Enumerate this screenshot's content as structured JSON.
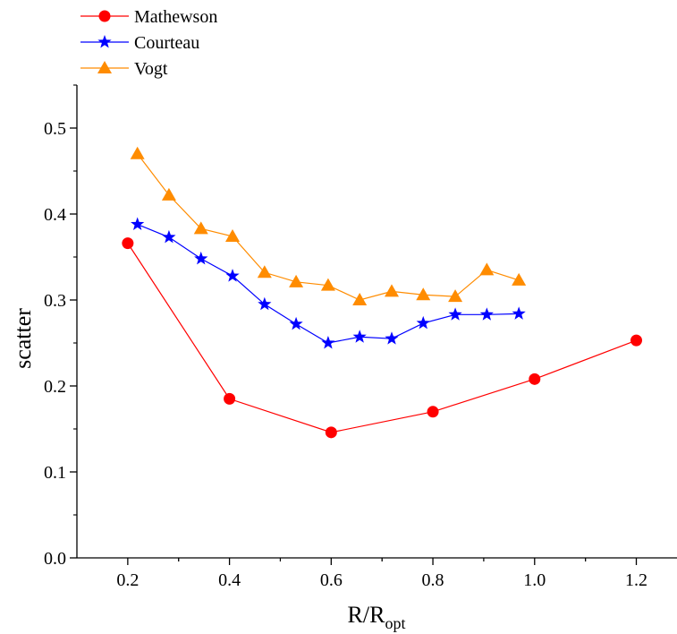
{
  "chart_data": {
    "type": "line",
    "title": "",
    "xlabel": "R/R",
    "xlabel_sub": "opt",
    "ylabel": "scatter",
    "xlim": [
      0.1,
      1.28
    ],
    "ylim": [
      0.0,
      0.55
    ],
    "xticks": [
      0.2,
      0.4,
      0.6,
      0.8,
      1.0,
      1.2
    ],
    "xtick_labels": [
      "0.2",
      "0.4",
      "0.6",
      "0.8",
      "1.0",
      "1.2"
    ],
    "yticks": [
      0.0,
      0.1,
      0.2,
      0.3,
      0.4,
      0.5
    ],
    "ytick_labels": [
      "0.0",
      "0.1",
      "0.2",
      "0.3",
      "0.4",
      "0.5"
    ],
    "grid": false,
    "legend_position": "top-left, outside above plot",
    "series": [
      {
        "name": "Mathewson",
        "color": "#ff0000",
        "marker": "circle",
        "x": [
          0.2,
          0.4,
          0.6,
          0.8,
          1.0,
          1.2
        ],
        "y": [
          0.366,
          0.185,
          0.146,
          0.17,
          0.208,
          0.253
        ]
      },
      {
        "name": "Courteau",
        "color": "#0000ff",
        "marker": "star",
        "x": [
          0.219,
          0.281,
          0.344,
          0.406,
          0.469,
          0.531,
          0.594,
          0.656,
          0.719,
          0.781,
          0.844,
          0.906,
          0.969
        ],
        "y": [
          0.388,
          0.373,
          0.348,
          0.328,
          0.295,
          0.272,
          0.25,
          0.257,
          0.255,
          0.273,
          0.283,
          0.283,
          0.284
        ]
      },
      {
        "name": "Vogt",
        "color": "#ff8c00",
        "marker": "triangle",
        "x": [
          0.219,
          0.281,
          0.344,
          0.406,
          0.469,
          0.531,
          0.594,
          0.656,
          0.719,
          0.781,
          0.844,
          0.906,
          0.969
        ],
        "y": [
          0.47,
          0.422,
          0.383,
          0.374,
          0.332,
          0.321,
          0.317,
          0.3,
          0.31,
          0.306,
          0.304,
          0.335,
          0.323
        ]
      }
    ]
  }
}
